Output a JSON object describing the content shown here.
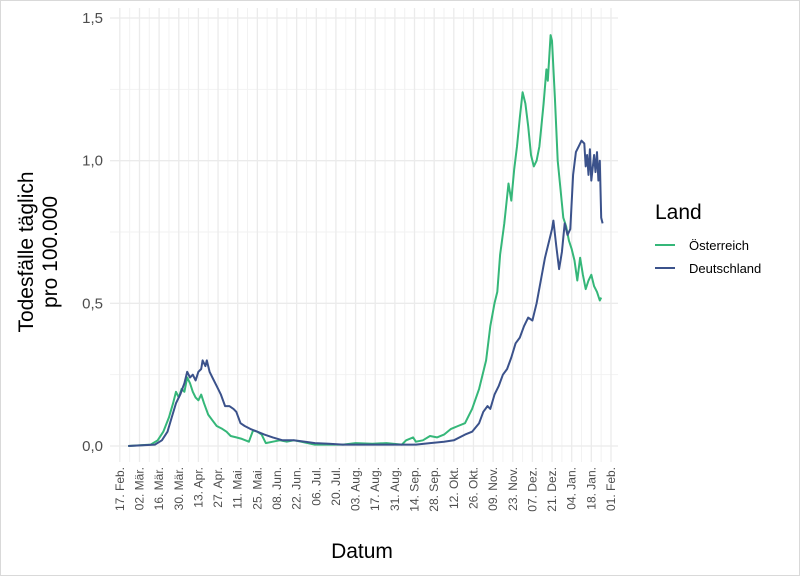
{
  "chart_data": {
    "type": "line",
    "xlabel": "Datum",
    "ylabel_lines": [
      "Todesfälle täglich",
      "pro 100.000"
    ],
    "ylim": [
      0,
      1.5
    ],
    "xlim": [
      "2020-02-10",
      "2021-02-06"
    ],
    "yticks": [
      {
        "value": 0.0,
        "label": "0,0"
      },
      {
        "value": 0.5,
        "label": "0,5"
      },
      {
        "value": 1.0,
        "label": "1,0"
      },
      {
        "value": 1.5,
        "label": "1,5"
      }
    ],
    "xticks": [
      {
        "date": "2020-02-17",
        "label": "17. Feb."
      },
      {
        "date": "2020-03-02",
        "label": "02. Mär."
      },
      {
        "date": "2020-03-16",
        "label": "16. Mär."
      },
      {
        "date": "2020-03-30",
        "label": "30. Mär."
      },
      {
        "date": "2020-04-13",
        "label": "13. Apr."
      },
      {
        "date": "2020-04-27",
        "label": "27. Apr."
      },
      {
        "date": "2020-05-11",
        "label": "11. Mai."
      },
      {
        "date": "2020-05-25",
        "label": "25. Mai."
      },
      {
        "date": "2020-06-08",
        "label": "08. Jun."
      },
      {
        "date": "2020-06-22",
        "label": "22. Jun."
      },
      {
        "date": "2020-07-06",
        "label": "06. Jul."
      },
      {
        "date": "2020-07-20",
        "label": "20. Jul."
      },
      {
        "date": "2020-08-03",
        "label": "03. Aug."
      },
      {
        "date": "2020-08-17",
        "label": "17. Aug."
      },
      {
        "date": "2020-08-31",
        "label": "31. Aug."
      },
      {
        "date": "2020-09-14",
        "label": "14. Sep."
      },
      {
        "date": "2020-09-28",
        "label": "28. Sep."
      },
      {
        "date": "2020-10-12",
        "label": "12. Okt."
      },
      {
        "date": "2020-10-26",
        "label": "26. Okt."
      },
      {
        "date": "2020-11-09",
        "label": "09. Nov."
      },
      {
        "date": "2020-11-23",
        "label": "23. Nov."
      },
      {
        "date": "2020-12-07",
        "label": "07. Dez."
      },
      {
        "date": "2020-12-21",
        "label": "21. Dez."
      },
      {
        "date": "2021-01-04",
        "label": "04. Jan."
      },
      {
        "date": "2021-01-18",
        "label": "18. Jan."
      },
      {
        "date": "2021-02-01",
        "label": "01. Feb."
      }
    ],
    "legend": {
      "title": "Land",
      "position": "right"
    },
    "grid": true,
    "series": [
      {
        "name": "Österreich",
        "color": "#35b779",
        "points": [
          [
            "2020-02-23",
            0.0
          ],
          [
            "2020-03-10",
            0.005
          ],
          [
            "2020-03-15",
            0.02
          ],
          [
            "2020-03-19",
            0.05
          ],
          [
            "2020-03-23",
            0.1
          ],
          [
            "2020-03-26",
            0.15
          ],
          [
            "2020-03-28",
            0.19
          ],
          [
            "2020-03-30",
            0.17
          ],
          [
            "2020-04-01",
            0.2
          ],
          [
            "2020-04-03",
            0.19
          ],
          [
            "2020-04-05",
            0.24
          ],
          [
            "2020-04-07",
            0.22
          ],
          [
            "2020-04-09",
            0.19
          ],
          [
            "2020-04-11",
            0.17
          ],
          [
            "2020-04-13",
            0.16
          ],
          [
            "2020-04-15",
            0.18
          ],
          [
            "2020-04-17",
            0.15
          ],
          [
            "2020-04-20",
            0.11
          ],
          [
            "2020-04-23",
            0.09
          ],
          [
            "2020-04-26",
            0.07
          ],
          [
            "2020-04-30",
            0.06
          ],
          [
            "2020-05-03",
            0.05
          ],
          [
            "2020-05-06",
            0.035
          ],
          [
            "2020-05-10",
            0.03
          ],
          [
            "2020-05-14",
            0.025
          ],
          [
            "2020-05-19",
            0.015
          ],
          [
            "2020-05-22",
            0.055
          ],
          [
            "2020-05-25",
            0.05
          ],
          [
            "2020-05-28",
            0.04
          ],
          [
            "2020-05-31",
            0.01
          ],
          [
            "2020-06-05",
            0.015
          ],
          [
            "2020-06-10",
            0.02
          ],
          [
            "2020-06-15",
            0.015
          ],
          [
            "2020-06-20",
            0.02
          ],
          [
            "2020-06-25",
            0.015
          ],
          [
            "2020-06-30",
            0.01
          ],
          [
            "2020-07-05",
            0.005
          ],
          [
            "2020-07-15",
            0.005
          ],
          [
            "2020-07-25",
            0.005
          ],
          [
            "2020-08-03",
            0.01
          ],
          [
            "2020-08-15",
            0.008
          ],
          [
            "2020-08-25",
            0.01
          ],
          [
            "2020-09-05",
            0.005
          ],
          [
            "2020-09-08",
            0.02
          ],
          [
            "2020-09-13",
            0.03
          ],
          [
            "2020-09-15",
            0.015
          ],
          [
            "2020-09-20",
            0.02
          ],
          [
            "2020-09-25",
            0.035
          ],
          [
            "2020-09-30",
            0.03
          ],
          [
            "2020-10-05",
            0.04
          ],
          [
            "2020-10-10",
            0.06
          ],
          [
            "2020-10-15",
            0.07
          ],
          [
            "2020-10-20",
            0.08
          ],
          [
            "2020-10-25",
            0.13
          ],
          [
            "2020-10-30",
            0.2
          ],
          [
            "2020-11-04",
            0.3
          ],
          [
            "2020-11-07",
            0.42
          ],
          [
            "2020-11-10",
            0.5
          ],
          [
            "2020-11-12",
            0.54
          ],
          [
            "2020-11-14",
            0.67
          ],
          [
            "2020-11-17",
            0.78
          ],
          [
            "2020-11-20",
            0.92
          ],
          [
            "2020-11-22",
            0.86
          ],
          [
            "2020-11-24",
            0.97
          ],
          [
            "2020-11-26",
            1.05
          ],
          [
            "2020-11-28",
            1.15
          ],
          [
            "2020-11-30",
            1.24
          ],
          [
            "2020-12-02",
            1.2
          ],
          [
            "2020-12-04",
            1.12
          ],
          [
            "2020-12-06",
            1.02
          ],
          [
            "2020-12-08",
            0.98
          ],
          [
            "2020-12-10",
            1.0
          ],
          [
            "2020-12-12",
            1.05
          ],
          [
            "2020-12-14",
            1.15
          ],
          [
            "2020-12-15",
            1.2
          ],
          [
            "2020-12-17",
            1.32
          ],
          [
            "2020-12-18",
            1.28
          ],
          [
            "2020-12-20",
            1.44
          ],
          [
            "2020-12-21",
            1.42
          ],
          [
            "2020-12-23",
            1.22
          ],
          [
            "2020-12-25",
            1.0
          ],
          [
            "2020-12-27",
            0.9
          ],
          [
            "2020-12-29",
            0.8
          ],
          [
            "2020-12-31",
            0.77
          ],
          [
            "2021-01-02",
            0.72
          ],
          [
            "2021-01-04",
            0.69
          ],
          [
            "2021-01-06",
            0.65
          ],
          [
            "2021-01-08",
            0.58
          ],
          [
            "2021-01-10",
            0.66
          ],
          [
            "2021-01-12",
            0.6
          ],
          [
            "2021-01-14",
            0.55
          ],
          [
            "2021-01-16",
            0.58
          ],
          [
            "2021-01-18",
            0.6
          ],
          [
            "2021-01-20",
            0.56
          ],
          [
            "2021-01-22",
            0.54
          ],
          [
            "2021-01-24",
            0.51
          ],
          [
            "2021-01-25",
            0.52
          ]
        ]
      },
      {
        "name": "Deutschland",
        "color": "#3b528b",
        "points": [
          [
            "2020-02-23",
            0.0
          ],
          [
            "2020-03-13",
            0.005
          ],
          [
            "2020-03-18",
            0.02
          ],
          [
            "2020-03-22",
            0.05
          ],
          [
            "2020-03-25",
            0.1
          ],
          [
            "2020-03-28",
            0.15
          ],
          [
            "2020-03-31",
            0.18
          ],
          [
            "2020-04-03",
            0.22
          ],
          [
            "2020-04-05",
            0.26
          ],
          [
            "2020-04-07",
            0.24
          ],
          [
            "2020-04-09",
            0.25
          ],
          [
            "2020-04-11",
            0.23
          ],
          [
            "2020-04-13",
            0.26
          ],
          [
            "2020-04-15",
            0.27
          ],
          [
            "2020-04-16",
            0.3
          ],
          [
            "2020-04-18",
            0.28
          ],
          [
            "2020-04-19",
            0.3
          ],
          [
            "2020-04-21",
            0.26
          ],
          [
            "2020-04-23",
            0.24
          ],
          [
            "2020-04-26",
            0.21
          ],
          [
            "2020-04-29",
            0.18
          ],
          [
            "2020-05-02",
            0.14
          ],
          [
            "2020-05-05",
            0.14
          ],
          [
            "2020-05-08",
            0.13
          ],
          [
            "2020-05-10",
            0.12
          ],
          [
            "2020-05-13",
            0.08
          ],
          [
            "2020-05-16",
            0.07
          ],
          [
            "2020-05-20",
            0.06
          ],
          [
            "2020-05-25",
            0.05
          ],
          [
            "2020-05-30",
            0.04
          ],
          [
            "2020-06-05",
            0.03
          ],
          [
            "2020-06-12",
            0.02
          ],
          [
            "2020-06-20",
            0.02
          ],
          [
            "2020-06-28",
            0.015
          ],
          [
            "2020-07-05",
            0.01
          ],
          [
            "2020-07-15",
            0.008
          ],
          [
            "2020-07-25",
            0.005
          ],
          [
            "2020-08-05",
            0.005
          ],
          [
            "2020-08-20",
            0.005
          ],
          [
            "2020-09-05",
            0.005
          ],
          [
            "2020-09-15",
            0.005
          ],
          [
            "2020-09-25",
            0.01
          ],
          [
            "2020-10-05",
            0.015
          ],
          [
            "2020-10-12",
            0.02
          ],
          [
            "2020-10-20",
            0.04
          ],
          [
            "2020-10-25",
            0.05
          ],
          [
            "2020-10-30",
            0.08
          ],
          [
            "2020-11-02",
            0.12
          ],
          [
            "2020-11-05",
            0.14
          ],
          [
            "2020-11-07",
            0.13
          ],
          [
            "2020-11-10",
            0.18
          ],
          [
            "2020-11-13",
            0.21
          ],
          [
            "2020-11-16",
            0.25
          ],
          [
            "2020-11-19",
            0.27
          ],
          [
            "2020-11-22",
            0.31
          ],
          [
            "2020-11-25",
            0.36
          ],
          [
            "2020-11-28",
            0.38
          ],
          [
            "2020-12-01",
            0.42
          ],
          [
            "2020-12-04",
            0.45
          ],
          [
            "2020-12-07",
            0.44
          ],
          [
            "2020-12-10",
            0.5
          ],
          [
            "2020-12-13",
            0.58
          ],
          [
            "2020-12-16",
            0.66
          ],
          [
            "2020-12-19",
            0.72
          ],
          [
            "2020-12-21",
            0.76
          ],
          [
            "2020-12-22",
            0.79
          ],
          [
            "2020-12-24",
            0.7
          ],
          [
            "2020-12-26",
            0.62
          ],
          [
            "2020-12-28",
            0.68
          ],
          [
            "2020-12-30",
            0.78
          ],
          [
            "2021-01-01",
            0.74
          ],
          [
            "2021-01-03",
            0.76
          ],
          [
            "2021-01-05",
            0.95
          ],
          [
            "2021-01-07",
            1.03
          ],
          [
            "2021-01-09",
            1.05
          ],
          [
            "2021-01-11",
            1.07
          ],
          [
            "2021-01-13",
            1.06
          ],
          [
            "2021-01-14",
            0.98
          ],
          [
            "2021-01-15",
            1.02
          ],
          [
            "2021-01-16",
            0.95
          ],
          [
            "2021-01-17",
            1.04
          ],
          [
            "2021-01-18",
            0.93
          ],
          [
            "2021-01-20",
            1.02
          ],
          [
            "2021-01-21",
            0.96
          ],
          [
            "2021-01-22",
            1.03
          ],
          [
            "2021-01-23",
            0.93
          ],
          [
            "2021-01-24",
            1.0
          ],
          [
            "2021-01-25",
            0.8
          ],
          [
            "2021-01-26",
            0.78
          ]
        ]
      }
    ]
  }
}
